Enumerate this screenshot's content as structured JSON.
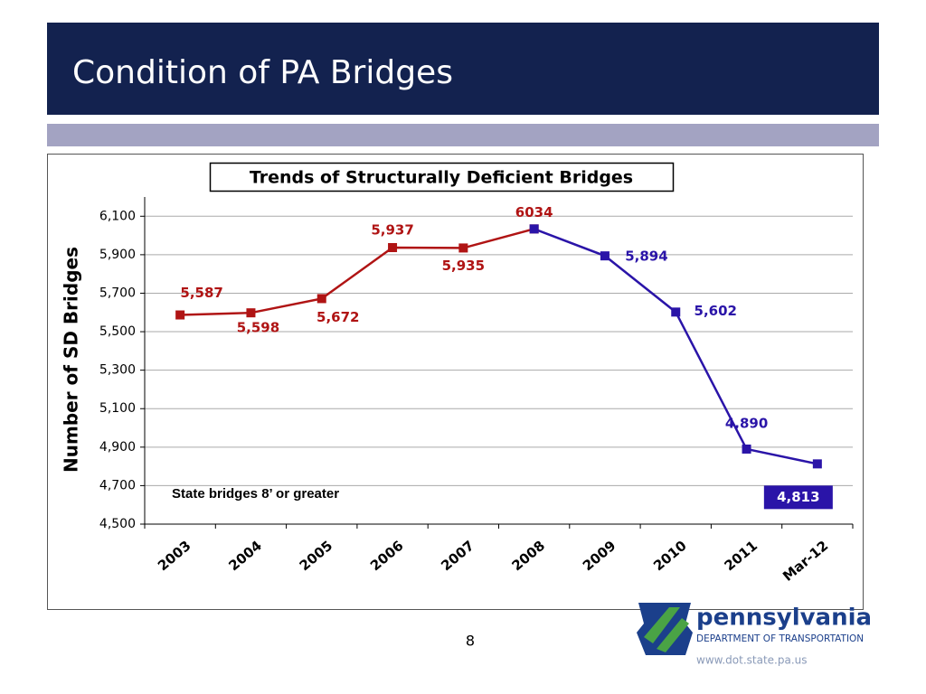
{
  "slide_title": "Condition of PA Bridges",
  "page_number": "8",
  "logo": {
    "name": "pennsylvania",
    "department": "DEPARTMENT OF TRANSPORTATION",
    "url": "www.dot.state.pa.us"
  },
  "chart_data": {
    "type": "line",
    "title": "Trends of Structurally Deficient Bridges",
    "ylabel": "Number of SD Bridges",
    "annotation": "State bridges 8’ or greater",
    "categories": [
      "2003",
      "2004",
      "2005",
      "2006",
      "2007",
      "2008",
      "2009",
      "2010",
      "2011",
      "Mar-12"
    ],
    "series": [
      {
        "color": "#b01414",
        "values": [
          5587,
          5598,
          5672,
          5937,
          5935,
          6034,
          null,
          null,
          null,
          null
        ],
        "value_labels": [
          "5,587",
          "5,598",
          "5,672",
          "5,937",
          "5,935",
          "6034",
          null,
          null,
          null,
          null
        ]
      },
      {
        "color": "#2a14a8",
        "values": [
          null,
          null,
          null,
          null,
          null,
          6034,
          5894,
          5602,
          4890,
          4813
        ],
        "value_labels": [
          null,
          null,
          null,
          null,
          null,
          null,
          "5,894",
          "5,602",
          "4,890",
          "4,813"
        ]
      }
    ],
    "ylim": [
      4500,
      6200
    ],
    "yticks": [
      {
        "value": 4500,
        "label": "4,500"
      },
      {
        "value": 4700,
        "label": "4,700"
      },
      {
        "value": 4900,
        "label": "4,900"
      },
      {
        "value": 5100,
        "label": "5,100"
      },
      {
        "value": 5300,
        "label": "5,300"
      },
      {
        "value": 5500,
        "label": "5,500"
      },
      {
        "value": 5700,
        "label": "5,700"
      },
      {
        "value": 5900,
        "label": "5,900"
      },
      {
        "value": 6100,
        "label": "6,100"
      }
    ],
    "grid": true
  }
}
